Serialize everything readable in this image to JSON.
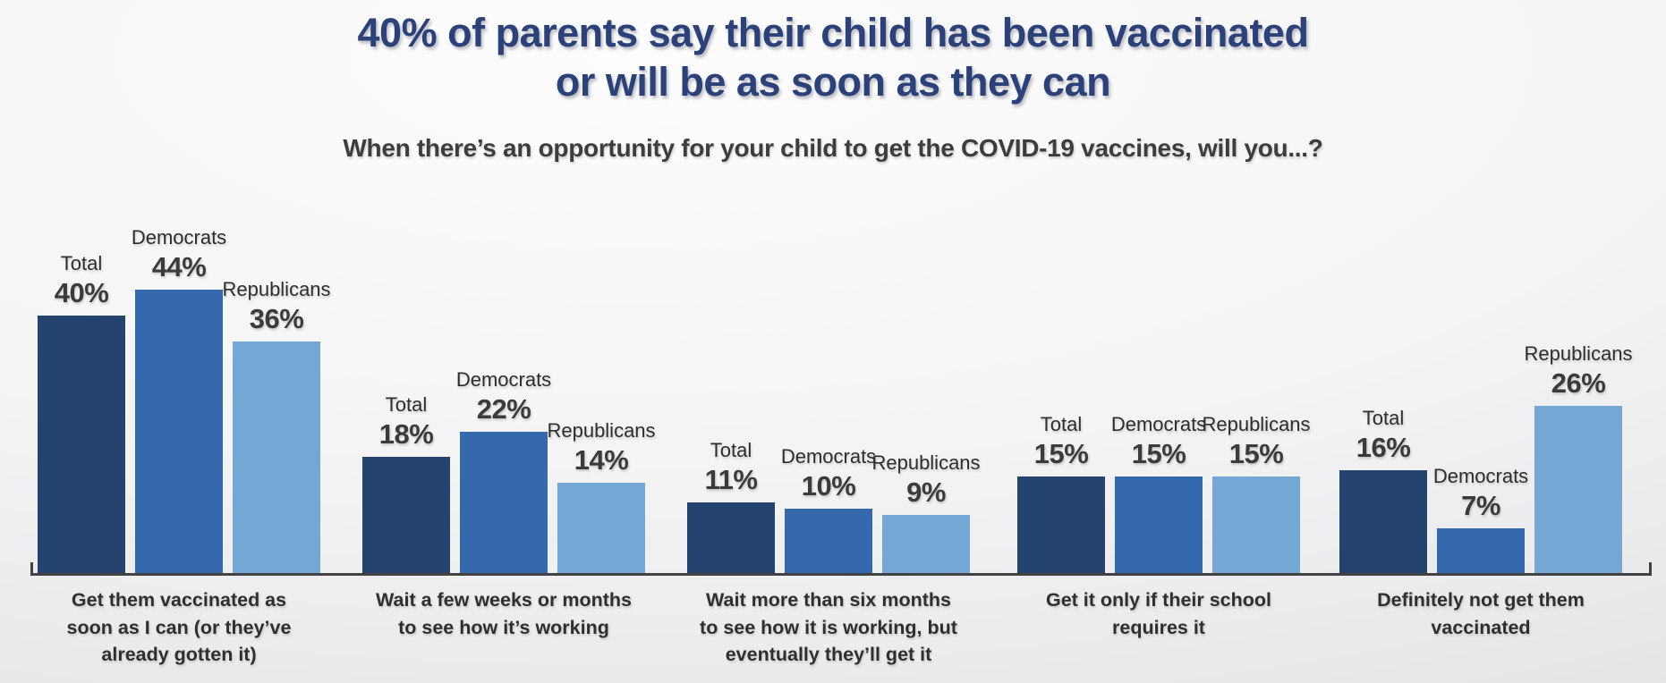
{
  "page": {
    "title_lines": [
      "40% of parents say their child has been vaccinated",
      "or will be as soon as they can"
    ],
    "subtitle": "When there’s an opportunity for your child to get the COVID-19 vaccines, will you...?"
  },
  "chart_data": {
    "type": "bar",
    "title": "40% of parents say their child has been vaccinated or will be as soon as they can",
    "subtitle": "When there’s an opportunity for your child to get the COVID-19 vaccines, will you...?",
    "unit": "percent",
    "ylim": [
      0,
      50
    ],
    "grid": false,
    "legend_position": "labels above each bar",
    "value_label_suffix": "%",
    "categories": [
      "Get them vaccinated as soon as I can (or they’ve already gotten it)",
      "Wait a few weeks or months to see how it’s working",
      "Wait more than six months to see how it is working, but eventually they’ll get it",
      "Get it only if their school requires it",
      "Definitely not get them vaccinated"
    ],
    "series": [
      {
        "name": "Total",
        "color": "#24436e",
        "values": [
          40,
          18,
          11,
          15,
          16
        ]
      },
      {
        "name": "Democrats",
        "color": "#3569ae",
        "values": [
          44,
          22,
          10,
          15,
          7
        ]
      },
      {
        "name": "Republicans",
        "color": "#74a7d3",
        "values": [
          36,
          14,
          9,
          15,
          26
        ]
      }
    ],
    "colors": {
      "title": "#2a4179",
      "subtitle_text": "#3d3d3d",
      "axis": "#424242",
      "bar_total": "#24436e",
      "bar_democrats": "#3569ae",
      "bar_republicans": "#74a7d3"
    }
  }
}
